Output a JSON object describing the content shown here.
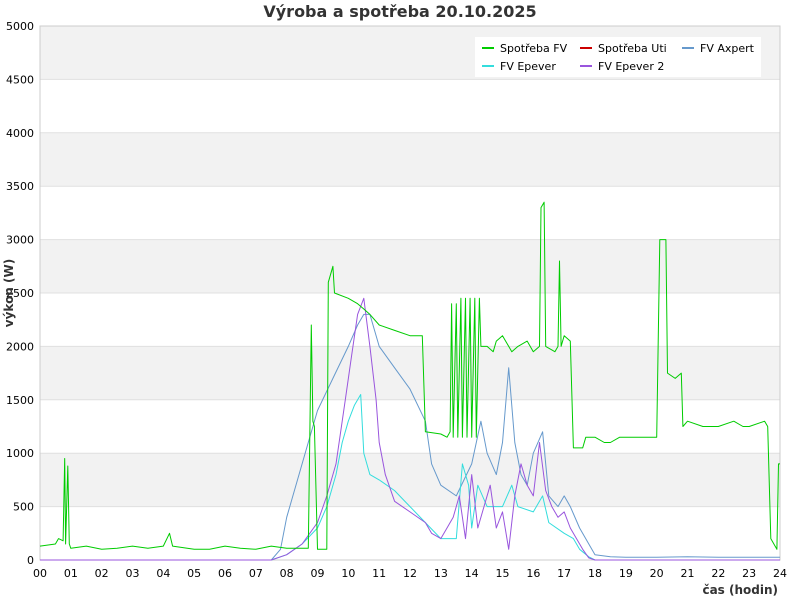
{
  "chart_data": {
    "type": "line",
    "title": "Výroba a spotřeba 20.10.2025",
    "xlabel": "čas (hodin)",
    "ylabel": "výkon (W)",
    "xlim": [
      0,
      24
    ],
    "ylim": [
      0,
      5000
    ],
    "x_ticks": [
      "00",
      "01",
      "02",
      "03",
      "04",
      "05",
      "06",
      "07",
      "08",
      "09",
      "10",
      "11",
      "12",
      "13",
      "14",
      "15",
      "16",
      "17",
      "18",
      "19",
      "20",
      "21",
      "22",
      "23",
      "24"
    ],
    "y_ticks": [
      "0",
      "500",
      "1000",
      "1500",
      "2000",
      "2500",
      "3000",
      "3500",
      "4000",
      "4500",
      "5000"
    ],
    "grid": "horizontal bands",
    "legend_position": "top-right",
    "series": [
      {
        "name": "Spotřeba FV",
        "color": "#00cc00",
        "points": [
          [
            0,
            130
          ],
          [
            0.5,
            150
          ],
          [
            0.6,
            200
          ],
          [
            0.75,
            180
          ],
          [
            0.8,
            950
          ],
          [
            0.83,
            150
          ],
          [
            0.9,
            880
          ],
          [
            0.95,
            150
          ],
          [
            1.0,
            110
          ],
          [
            1.5,
            130
          ],
          [
            2.0,
            100
          ],
          [
            2.5,
            110
          ],
          [
            3.0,
            130
          ],
          [
            3.5,
            110
          ],
          [
            4.0,
            130
          ],
          [
            4.2,
            250
          ],
          [
            4.3,
            130
          ],
          [
            5.0,
            100
          ],
          [
            5.5,
            100
          ],
          [
            6.0,
            130
          ],
          [
            6.5,
            110
          ],
          [
            7.0,
            100
          ],
          [
            7.5,
            130
          ],
          [
            8.0,
            110
          ],
          [
            8.7,
            110
          ],
          [
            8.8,
            2200
          ],
          [
            8.85,
            1300
          ],
          [
            8.9,
            1250
          ],
          [
            9.0,
            100
          ],
          [
            9.3,
            100
          ],
          [
            9.35,
            2600
          ],
          [
            9.5,
            2750
          ],
          [
            9.55,
            2500
          ],
          [
            10.0,
            2450
          ],
          [
            10.3,
            2400
          ],
          [
            10.5,
            2350
          ],
          [
            10.7,
            2300
          ],
          [
            11.0,
            2200
          ],
          [
            11.5,
            2150
          ],
          [
            12.0,
            2100
          ],
          [
            12.4,
            2100
          ],
          [
            12.5,
            1200
          ],
          [
            13.0,
            1180
          ],
          [
            13.2,
            1150
          ],
          [
            13.3,
            1200
          ],
          [
            13.35,
            2400
          ],
          [
            13.4,
            1150
          ],
          [
            13.5,
            2400
          ],
          [
            13.55,
            1150
          ],
          [
            13.65,
            2450
          ],
          [
            13.7,
            1150
          ],
          [
            13.8,
            2450
          ],
          [
            13.85,
            1150
          ],
          [
            13.95,
            2450
          ],
          [
            14.0,
            1150
          ],
          [
            14.1,
            2450
          ],
          [
            14.15,
            1150
          ],
          [
            14.25,
            2450
          ],
          [
            14.3,
            2000
          ],
          [
            14.5,
            2000
          ],
          [
            14.7,
            1950
          ],
          [
            14.8,
            2050
          ],
          [
            15.0,
            2100
          ],
          [
            15.3,
            1950
          ],
          [
            15.5,
            2000
          ],
          [
            15.8,
            2050
          ],
          [
            16.0,
            1950
          ],
          [
            16.2,
            2000
          ],
          [
            16.25,
            3300
          ],
          [
            16.35,
            3350
          ],
          [
            16.4,
            2000
          ],
          [
            16.7,
            1950
          ],
          [
            16.8,
            2000
          ],
          [
            16.85,
            2800
          ],
          [
            16.9,
            2000
          ],
          [
            17.0,
            2100
          ],
          [
            17.2,
            2050
          ],
          [
            17.3,
            1050
          ],
          [
            17.6,
            1050
          ],
          [
            17.7,
            1150
          ],
          [
            18.0,
            1150
          ],
          [
            18.3,
            1100
          ],
          [
            18.5,
            1100
          ],
          [
            18.8,
            1150
          ],
          [
            19.0,
            1150
          ],
          [
            19.5,
            1150
          ],
          [
            20.0,
            1150
          ],
          [
            20.1,
            3000
          ],
          [
            20.3,
            3000
          ],
          [
            20.35,
            1750
          ],
          [
            20.6,
            1700
          ],
          [
            20.8,
            1750
          ],
          [
            20.85,
            1250
          ],
          [
            21.0,
            1300
          ],
          [
            21.5,
            1250
          ],
          [
            22.0,
            1250
          ],
          [
            22.5,
            1300
          ],
          [
            22.8,
            1250
          ],
          [
            23.0,
            1250
          ],
          [
            23.5,
            1300
          ],
          [
            23.6,
            1250
          ],
          [
            23.7,
            200
          ],
          [
            23.9,
            100
          ],
          [
            23.95,
            900
          ],
          [
            24.0,
            900
          ]
        ]
      },
      {
        "name": "Spotřeba Uti",
        "color": "#cc0000",
        "points": []
      },
      {
        "name": "FV Axpert",
        "color": "#6699cc",
        "points": [
          [
            0,
            0
          ],
          [
            7.5,
            0
          ],
          [
            7.8,
            100
          ],
          [
            8.0,
            400
          ],
          [
            8.5,
            900
          ],
          [
            9.0,
            1400
          ],
          [
            9.5,
            1700
          ],
          [
            10.0,
            2000
          ],
          [
            10.3,
            2200
          ],
          [
            10.5,
            2300
          ],
          [
            10.7,
            2300
          ],
          [
            11.0,
            2000
          ],
          [
            11.5,
            1800
          ],
          [
            12.0,
            1600
          ],
          [
            12.5,
            1300
          ],
          [
            12.7,
            900
          ],
          [
            13.0,
            700
          ],
          [
            13.5,
            600
          ],
          [
            14.0,
            900
          ],
          [
            14.3,
            1300
          ],
          [
            14.5,
            1000
          ],
          [
            14.8,
            800
          ],
          [
            15.0,
            1100
          ],
          [
            15.2,
            1800
          ],
          [
            15.4,
            1100
          ],
          [
            15.6,
            800
          ],
          [
            15.8,
            700
          ],
          [
            16.0,
            1000
          ],
          [
            16.3,
            1200
          ],
          [
            16.5,
            600
          ],
          [
            16.8,
            500
          ],
          [
            17.0,
            600
          ],
          [
            17.2,
            500
          ],
          [
            17.5,
            300
          ],
          [
            17.8,
            150
          ],
          [
            18.0,
            50
          ],
          [
            18.5,
            30
          ],
          [
            19.0,
            25
          ],
          [
            20.0,
            25
          ],
          [
            21.0,
            30
          ],
          [
            22.0,
            25
          ],
          [
            23.0,
            25
          ],
          [
            24.0,
            25
          ]
        ]
      },
      {
        "name": "FV Epever",
        "color": "#33dddd",
        "points": [
          [
            0,
            0
          ],
          [
            7.5,
            0
          ],
          [
            8.0,
            50
          ],
          [
            8.5,
            150
          ],
          [
            9.0,
            300
          ],
          [
            9.3,
            500
          ],
          [
            9.6,
            800
          ],
          [
            9.8,
            1100
          ],
          [
            10.0,
            1300
          ],
          [
            10.2,
            1450
          ],
          [
            10.4,
            1550
          ],
          [
            10.5,
            1000
          ],
          [
            10.7,
            800
          ],
          [
            11.0,
            750
          ],
          [
            11.5,
            650
          ],
          [
            12.0,
            500
          ],
          [
            12.5,
            350
          ],
          [
            13.0,
            200
          ],
          [
            13.5,
            200
          ],
          [
            13.7,
            900
          ],
          [
            13.9,
            700
          ],
          [
            14.0,
            300
          ],
          [
            14.2,
            700
          ],
          [
            14.5,
            500
          ],
          [
            15.0,
            500
          ],
          [
            15.3,
            700
          ],
          [
            15.5,
            500
          ],
          [
            16.0,
            450
          ],
          [
            16.3,
            600
          ],
          [
            16.5,
            350
          ],
          [
            17.0,
            250
          ],
          [
            17.3,
            200
          ],
          [
            17.5,
            100
          ],
          [
            17.8,
            30
          ],
          [
            18.0,
            0
          ],
          [
            24.0,
            0
          ]
        ]
      },
      {
        "name": "FV Epever 2",
        "color": "#9955dd",
        "points": [
          [
            0,
            0
          ],
          [
            7.5,
            0
          ],
          [
            8.0,
            50
          ],
          [
            8.5,
            150
          ],
          [
            9.0,
            350
          ],
          [
            9.3,
            600
          ],
          [
            9.6,
            900
          ],
          [
            9.9,
            1500
          ],
          [
            10.1,
            1900
          ],
          [
            10.3,
            2300
          ],
          [
            10.5,
            2450
          ],
          [
            10.7,
            2000
          ],
          [
            10.9,
            1500
          ],
          [
            11.0,
            1100
          ],
          [
            11.2,
            800
          ],
          [
            11.5,
            550
          ],
          [
            12.0,
            450
          ],
          [
            12.5,
            350
          ],
          [
            12.7,
            250
          ],
          [
            13.0,
            200
          ],
          [
            13.2,
            300
          ],
          [
            13.4,
            400
          ],
          [
            13.6,
            600
          ],
          [
            13.8,
            200
          ],
          [
            14.0,
            800
          ],
          [
            14.2,
            300
          ],
          [
            14.4,
            500
          ],
          [
            14.6,
            700
          ],
          [
            14.8,
            300
          ],
          [
            15.0,
            450
          ],
          [
            15.2,
            100
          ],
          [
            15.4,
            600
          ],
          [
            15.6,
            900
          ],
          [
            15.8,
            700
          ],
          [
            16.0,
            600
          ],
          [
            16.2,
            1100
          ],
          [
            16.4,
            650
          ],
          [
            16.6,
            500
          ],
          [
            16.8,
            400
          ],
          [
            17.0,
            450
          ],
          [
            17.2,
            300
          ],
          [
            17.4,
            200
          ],
          [
            17.6,
            100
          ],
          [
            17.8,
            20
          ],
          [
            18.0,
            0
          ],
          [
            24.0,
            0
          ]
        ]
      }
    ]
  }
}
